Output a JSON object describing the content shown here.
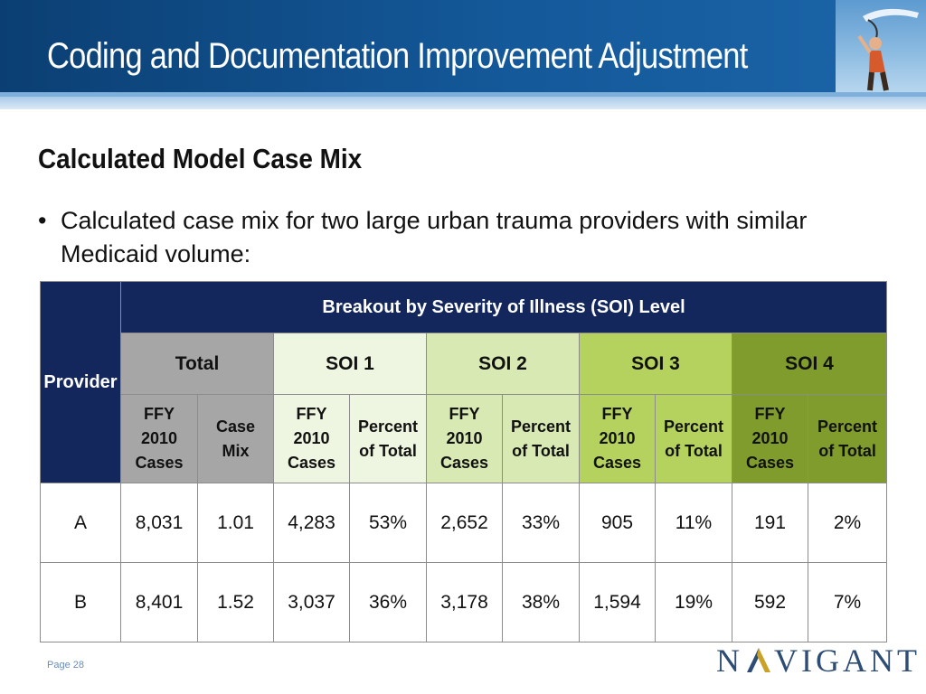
{
  "header": {
    "title": "Coding and Documentation Improvement Adjustment"
  },
  "section": {
    "subtitle": "Calculated Model Case Mix",
    "bullet": "Calculated case mix for two large urban trauma providers with similar Medicaid volume:"
  },
  "table": {
    "provider_header": "Provider",
    "breakout_header": "Breakout by Severity of Illness (SOI) Level",
    "groups": [
      "Total",
      "SOI 1",
      "SOI 2",
      "SOI 3",
      "SOI 4"
    ],
    "subheaders": {
      "cases": [
        "FFY",
        "2010",
        "Cases"
      ],
      "case_mix": [
        "Case",
        "Mix"
      ],
      "percent": [
        "Percent",
        "of Total"
      ]
    },
    "rows": [
      {
        "provider": "A",
        "total_cases": "8,031",
        "case_mix": "1.01",
        "soi1_cases": "4,283",
        "soi1_pct": "53%",
        "soi2_cases": "2,652",
        "soi2_pct": "33%",
        "soi3_cases": "905",
        "soi3_pct": "11%",
        "soi4_cases": "191",
        "soi4_pct": "2%"
      },
      {
        "provider": "B",
        "total_cases": "8,401",
        "case_mix": "1.52",
        "soi1_cases": "3,037",
        "soi1_pct": "36%",
        "soi2_cases": "3,178",
        "soi2_pct": "38%",
        "soi3_cases": "1,594",
        "soi3_pct": "19%",
        "soi4_cases": "592",
        "soi4_pct": "7%"
      }
    ]
  },
  "footer": {
    "page": "Page 28",
    "logo_left": "N",
    "logo_right": "VIGANT"
  },
  "colors": {
    "header": "#14599a",
    "table_header": "#14275d",
    "soi1": "#eef5e0",
    "soi2": "#d9e9b3",
    "soi3": "#b5d25e",
    "soi4": "#7f9c2c",
    "total": "#a6a6a6"
  }
}
